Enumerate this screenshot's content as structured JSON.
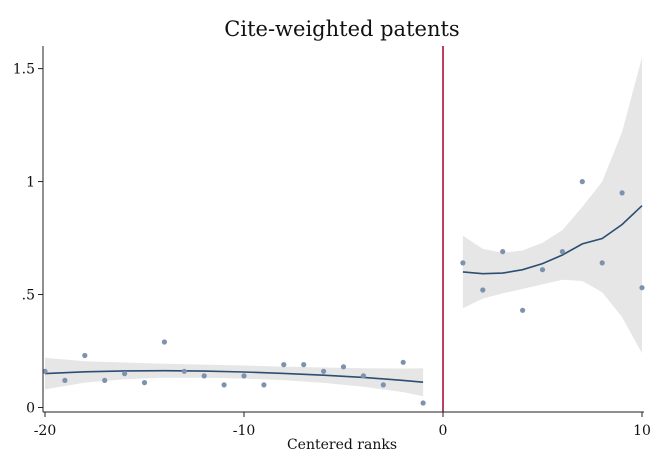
{
  "chart_data": {
    "type": "scatter",
    "title": "Cite-weighted patents",
    "xlabel": "Centered ranks",
    "ylabel": "",
    "xlim": [
      -20.1,
      10.1
    ],
    "ylim": [
      -0.02,
      1.6
    ],
    "x_ticks": [
      {
        "value": -20,
        "label": "-20"
      },
      {
        "value": -10,
        "label": "-10"
      },
      {
        "value": 0,
        "label": "0"
      },
      {
        "value": 10,
        "label": "10"
      }
    ],
    "y_ticks": [
      {
        "value": 0,
        "label": "0"
      },
      {
        "value": 0.5,
        "label": ".5"
      },
      {
        "value": 1,
        "label": "1"
      },
      {
        "value": 1.5,
        "label": "1.5"
      }
    ],
    "grid": false,
    "legend": "none",
    "cutoff_x": 0,
    "colors": {
      "points": "#7d93ad",
      "fit": "#2c4e72",
      "ci_band": "#e6e6e6",
      "cutoff": "#a8123a"
    },
    "points": [
      {
        "x": -20,
        "y": 0.16
      },
      {
        "x": -19,
        "y": 0.12
      },
      {
        "x": -18,
        "y": 0.23
      },
      {
        "x": -17,
        "y": 0.12
      },
      {
        "x": -16,
        "y": 0.15
      },
      {
        "x": -15,
        "y": 0.11
      },
      {
        "x": -14,
        "y": 0.29
      },
      {
        "x": -13,
        "y": 0.16
      },
      {
        "x": -12,
        "y": 0.14
      },
      {
        "x": -11,
        "y": 0.1
      },
      {
        "x": -10,
        "y": 0.14
      },
      {
        "x": -9,
        "y": 0.1
      },
      {
        "x": -8,
        "y": 0.19
      },
      {
        "x": -7,
        "y": 0.19
      },
      {
        "x": -6,
        "y": 0.16
      },
      {
        "x": -5,
        "y": 0.18
      },
      {
        "x": -4,
        "y": 0.14
      },
      {
        "x": -3,
        "y": 0.1
      },
      {
        "x": -2,
        "y": 0.2
      },
      {
        "x": -1,
        "y": 0.02
      },
      {
        "x": 1,
        "y": 0.64
      },
      {
        "x": 2,
        "y": 0.52
      },
      {
        "x": 3,
        "y": 0.69
      },
      {
        "x": 4,
        "y": 0.43
      },
      {
        "x": 5,
        "y": 0.61
      },
      {
        "x": 6,
        "y": 0.69
      },
      {
        "x": 7,
        "y": 1.0
      },
      {
        "x": 8,
        "y": 0.64
      },
      {
        "x": 9,
        "y": 0.95
      },
      {
        "x": 10,
        "y": 0.53
      }
    ],
    "fits": [
      {
        "segment": "left",
        "points": [
          {
            "x": -20,
            "y": 0.15,
            "lo": 0.08,
            "hi": 0.22
          },
          {
            "x": -18,
            "y": 0.158,
            "lo": 0.11,
            "hi": 0.205
          },
          {
            "x": -16,
            "y": 0.162,
            "lo": 0.125,
            "hi": 0.199
          },
          {
            "x": -14,
            "y": 0.163,
            "lo": 0.132,
            "hi": 0.194
          },
          {
            "x": -12,
            "y": 0.161,
            "lo": 0.132,
            "hi": 0.19
          },
          {
            "x": -10,
            "y": 0.157,
            "lo": 0.128,
            "hi": 0.186
          },
          {
            "x": -8,
            "y": 0.151,
            "lo": 0.121,
            "hi": 0.181
          },
          {
            "x": -6,
            "y": 0.143,
            "lo": 0.109,
            "hi": 0.177
          },
          {
            "x": -4,
            "y": 0.133,
            "lo": 0.092,
            "hi": 0.174
          },
          {
            "x": -2,
            "y": 0.12,
            "lo": 0.068,
            "hi": 0.172
          },
          {
            "x": -1,
            "y": 0.112,
            "lo": 0.05,
            "hi": 0.174
          }
        ]
      },
      {
        "segment": "right",
        "points": [
          {
            "x": 1,
            "y": 0.6,
            "lo": 0.44,
            "hi": 0.76
          },
          {
            "x": 2,
            "y": 0.592,
            "lo": 0.482,
            "hi": 0.702
          },
          {
            "x": 3,
            "y": 0.595,
            "lo": 0.505,
            "hi": 0.685
          },
          {
            "x": 4,
            "y": 0.61,
            "lo": 0.525,
            "hi": 0.695
          },
          {
            "x": 5,
            "y": 0.637,
            "lo": 0.545,
            "hi": 0.729
          },
          {
            "x": 6,
            "y": 0.675,
            "lo": 0.565,
            "hi": 0.785
          },
          {
            "x": 7,
            "y": 0.724,
            "lo": 0.56,
            "hi": 0.888
          },
          {
            "x": 8,
            "y": 0.748,
            "lo": 0.51,
            "hi": 1.0
          },
          {
            "x": 9,
            "y": 0.81,
            "lo": 0.4,
            "hi": 1.22
          },
          {
            "x": 10,
            "y": 0.893,
            "lo": 0.24,
            "hi": 1.55
          }
        ]
      }
    ]
  }
}
